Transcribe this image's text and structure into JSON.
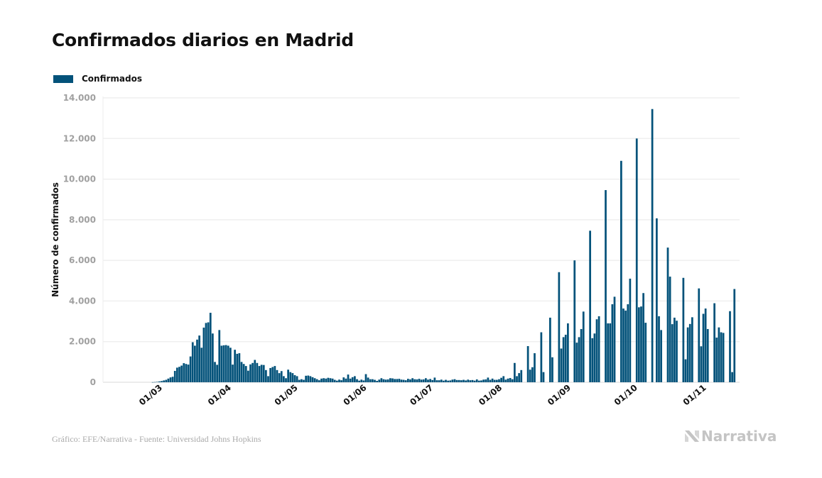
{
  "chart_data": {
    "type": "bar",
    "title": "Confirmados diarios en Madrid",
    "xlabel": "",
    "ylabel": "Número de confirmados",
    "ylim": [
      0,
      14000
    ],
    "yticks": [
      0,
      2000,
      4000,
      6000,
      8000,
      10000,
      12000,
      14000
    ],
    "ytick_labels": [
      "0",
      "2.000",
      "4.000",
      "6.000",
      "8.000",
      "10.000",
      "12.000",
      "14.000"
    ],
    "xtick_labels": [
      "01/03",
      "01/04",
      "01/05",
      "01/06",
      "01/07",
      "01/08",
      "01/09",
      "01/10",
      "01/11"
    ],
    "xtick_day_index": [
      21,
      52,
      82,
      113,
      143,
      174,
      205,
      235,
      266
    ],
    "start_date": "09/02",
    "grid": true,
    "legend_position": "top-left",
    "series": [
      {
        "name": "Confirmados",
        "color": "#03527a",
        "values": [
          0,
          0,
          0,
          0,
          0,
          0,
          0,
          0,
          0,
          0,
          0,
          0,
          0,
          0,
          0,
          0,
          0,
          0,
          0,
          0,
          0,
          5,
          10,
          20,
          40,
          60,
          90,
          120,
          180,
          240,
          270,
          560,
          720,
          760,
          820,
          940,
          900,
          870,
          1270,
          1970,
          1800,
          2100,
          2300,
          1700,
          2690,
          2920,
          2950,
          3420,
          2400,
          1000,
          860,
          2570,
          1800,
          1820,
          1830,
          1800,
          1700,
          870,
          1600,
          1400,
          1430,
          1000,
          900,
          800,
          570,
          880,
          950,
          1100,
          950,
          800,
          860,
          850,
          600,
          300,
          700,
          750,
          800,
          600,
          450,
          550,
          300,
          200,
          620,
          500,
          450,
          350,
          300,
          120,
          150,
          120,
          320,
          330,
          300,
          250,
          200,
          150,
          100,
          180,
          200,
          180,
          220,
          200,
          180,
          120,
          80,
          130,
          100,
          240,
          180,
          380,
          180,
          250,
          300,
          150,
          80,
          130,
          90,
          400,
          230,
          150,
          150,
          120,
          70,
          130,
          200,
          150,
          130,
          140,
          200,
          190,
          160,
          160,
          170,
          130,
          120,
          100,
          170,
          140,
          200,
          150,
          140,
          170,
          130,
          140,
          200,
          130,
          160,
          110,
          230,
          100,
          100,
          130,
          80,
          120,
          80,
          90,
          130,
          150,
          110,
          110,
          100,
          120,
          90,
          130,
          100,
          110,
          80,
          140,
          80,
          90,
          130,
          140,
          230,
          120,
          180,
          120,
          120,
          150,
          220,
          300,
          130,
          180,
          210,
          150,
          950,
          300,
          450,
          600,
          0,
          0,
          1780,
          620,
          740,
          1430,
          0,
          0,
          2460,
          500,
          0,
          0,
          3180,
          1230,
          0,
          0,
          5420,
          1660,
          2220,
          2340,
          2900,
          0,
          0,
          6000,
          1950,
          2220,
          2620,
          3480,
          0,
          0,
          7460,
          2170,
          2400,
          3100,
          3250,
          0,
          0,
          9460,
          2900,
          2900,
          3840,
          4210,
          0,
          0,
          10900,
          3630,
          3530,
          3840,
          5100,
          0,
          0,
          12000,
          3690,
          3730,
          4390,
          2930,
          0,
          0,
          13450,
          0,
          8070,
          3250,
          2570,
          0,
          0,
          6630,
          5200,
          2860,
          3180,
          3030,
          0,
          0,
          5140,
          1130,
          2700,
          2870,
          3200,
          0,
          0,
          4620,
          1770,
          3370,
          3630,
          2620,
          0,
          0,
          3890,
          2200,
          2700,
          2460,
          2430,
          0,
          0,
          3500,
          500,
          4590
        ]
      }
    ]
  },
  "header": {
    "title": "Confirmados diarios en Madrid"
  },
  "legend": {
    "label": "Confirmados",
    "color": "#03527a"
  },
  "footer": {
    "credit": "Gráfico: EFE/Narrativa - Fuente: Universidad Johns Hopkins",
    "brand": "Narrativa"
  }
}
